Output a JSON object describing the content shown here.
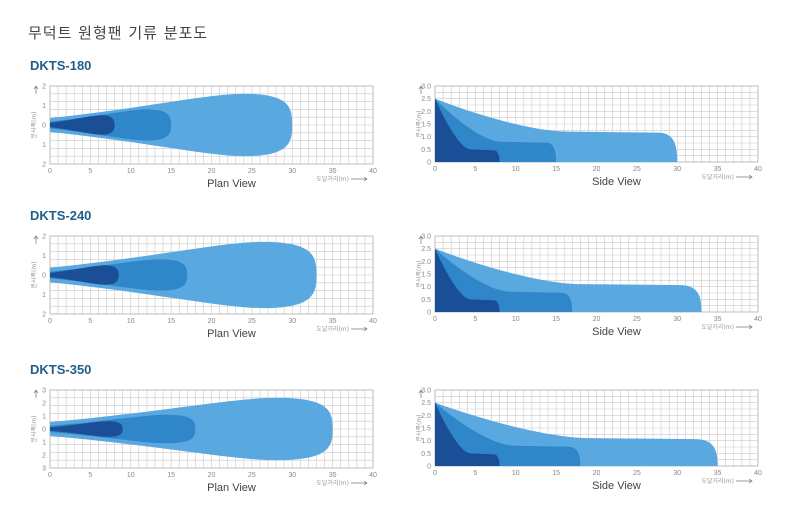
{
  "page_title": "무덕트 원형팬 기류 분포도",
  "colors": {
    "outer": "#5aa8e0",
    "mid": "#2f86c8",
    "inner": "#1a4e96",
    "grid": "#c9c9c9",
    "model": "#1f5f8b"
  },
  "chart_data": [
    {
      "type": "area",
      "model": "DKTS-180",
      "view": "Plan View",
      "xlabel": "도달거리(m)",
      "ylabel": "분사폭(m)",
      "xlim": [
        0,
        40
      ],
      "ylim": [
        -2,
        2
      ],
      "xticks": [
        0,
        5,
        10,
        15,
        20,
        25,
        30,
        35,
        40
      ],
      "yticks": [
        "2",
        "1",
        "0",
        "1",
        "2"
      ],
      "series": [
        {
          "reach": 30,
          "halfwidth": 1.6
        },
        {
          "reach": 15,
          "halfwidth": 0.8
        },
        {
          "reach": 8,
          "halfwidth": 0.5
        }
      ]
    },
    {
      "type": "area",
      "model": "DKTS-180",
      "view": "Side View",
      "xlabel": "도달거리(m)",
      "ylabel": "분사폭(m)",
      "xlim": [
        0,
        40
      ],
      "ylim": [
        0,
        3
      ],
      "xticks": [
        0,
        5,
        10,
        15,
        20,
        25,
        30,
        35,
        40
      ],
      "yticks": [
        "0",
        "0.5",
        "1.0",
        "1.5",
        "2.0",
        "2.5",
        "3.0"
      ],
      "source_height": 2.5,
      "series": [
        {
          "reach": 30,
          "plateau": 1.2
        },
        {
          "reach": 15,
          "plateau": 0.8
        },
        {
          "reach": 8,
          "plateau": 0.5
        }
      ]
    },
    {
      "type": "area",
      "model": "DKTS-240",
      "view": "Plan View",
      "xlabel": "도달거리(m)",
      "ylabel": "분사폭(m)",
      "xlim": [
        0,
        40
      ],
      "ylim": [
        -2,
        2
      ],
      "xticks": [
        0,
        5,
        10,
        15,
        20,
        25,
        30,
        35,
        40
      ],
      "yticks": [
        "2",
        "1",
        "0",
        "1",
        "2"
      ],
      "series": [
        {
          "reach": 33,
          "halfwidth": 1.7
        },
        {
          "reach": 17,
          "halfwidth": 0.8
        },
        {
          "reach": 8.5,
          "halfwidth": 0.5
        }
      ]
    },
    {
      "type": "area",
      "model": "DKTS-240",
      "view": "Side View",
      "xlabel": "도달거리(m)",
      "ylabel": "분사폭(m)",
      "xlim": [
        0,
        40
      ],
      "ylim": [
        0,
        3
      ],
      "xticks": [
        0,
        5,
        10,
        15,
        20,
        25,
        30,
        35,
        40
      ],
      "yticks": [
        "0",
        "0.5",
        "1.0",
        "1.5",
        "2.0",
        "2.5",
        "3.0"
      ],
      "source_height": 2.5,
      "series": [
        {
          "reach": 33,
          "plateau": 1.1
        },
        {
          "reach": 17,
          "plateau": 0.8
        },
        {
          "reach": 8,
          "plateau": 0.5
        }
      ]
    },
    {
      "type": "area",
      "model": "DKTS-350",
      "view": "Plan View",
      "xlabel": "도달거리(m)",
      "ylabel": "분사폭(m)",
      "xlim": [
        0,
        40
      ],
      "ylim": [
        -3,
        3
      ],
      "xticks": [
        0,
        5,
        10,
        15,
        20,
        25,
        30,
        35,
        40
      ],
      "yticks": [
        "3",
        "2",
        "1",
        "0",
        "1",
        "2",
        "3"
      ],
      "series": [
        {
          "reach": 35,
          "halfwidth": 2.4
        },
        {
          "reach": 18,
          "halfwidth": 1.1
        },
        {
          "reach": 9,
          "halfwidth": 0.6
        }
      ]
    },
    {
      "type": "area",
      "model": "DKTS-350",
      "view": "Side View",
      "xlabel": "도달거리(m)",
      "ylabel": "분사폭(m)",
      "xlim": [
        0,
        40
      ],
      "ylim": [
        0,
        3
      ],
      "xticks": [
        0,
        5,
        10,
        15,
        20,
        25,
        30,
        35,
        40
      ],
      "yticks": [
        "0",
        "0.5",
        "1.0",
        "1.5",
        "2.0",
        "2.5",
        "3.0"
      ],
      "source_height": 2.5,
      "series": [
        {
          "reach": 35,
          "plateau": 1.1
        },
        {
          "reach": 18,
          "plateau": 0.8
        },
        {
          "reach": 8,
          "plateau": 0.5
        }
      ]
    }
  ]
}
